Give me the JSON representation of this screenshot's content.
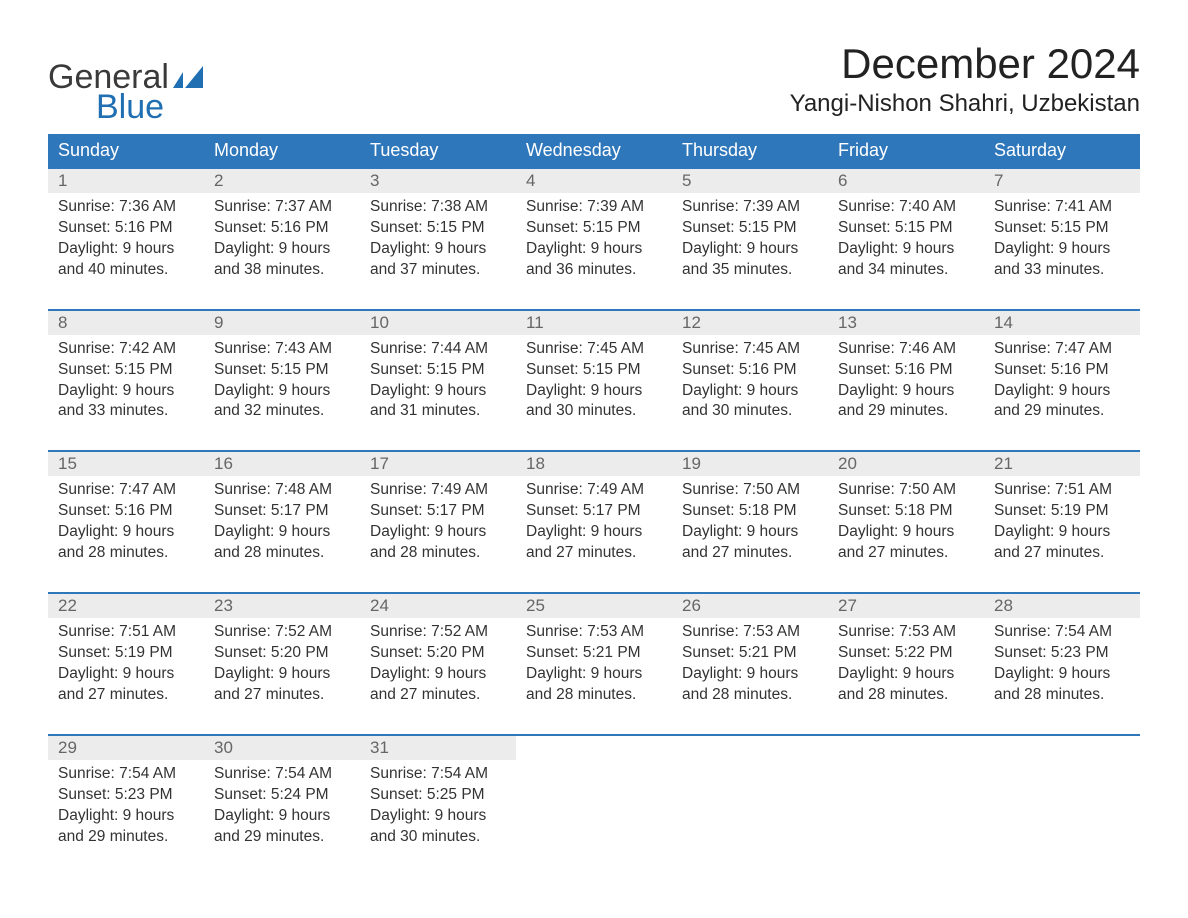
{
  "logo": {
    "word1": "General",
    "word2": "Blue",
    "brand_color": "#1f6fb2"
  },
  "header": {
    "month_title": "December 2024",
    "location": "Yangi-Nishon Shahri, Uzbekistan"
  },
  "calendar": {
    "type": "table",
    "header_bg": "#2f77bb",
    "header_fg": "#ffffff",
    "daynum_bg": "#ececec",
    "daynum_fg": "#666666",
    "row_divider_color": "#2f77bb",
    "background_color": "#ffffff",
    "text_color": "#333333",
    "day_headers": [
      "Sunday",
      "Monday",
      "Tuesday",
      "Wednesday",
      "Thursday",
      "Friday",
      "Saturday"
    ],
    "weeks": [
      [
        {
          "n": "1",
          "sunrise": "Sunrise: 7:36 AM",
          "sunset": "Sunset: 5:16 PM",
          "d1": "Daylight: 9 hours",
          "d2": "and 40 minutes."
        },
        {
          "n": "2",
          "sunrise": "Sunrise: 7:37 AM",
          "sunset": "Sunset: 5:16 PM",
          "d1": "Daylight: 9 hours",
          "d2": "and 38 minutes."
        },
        {
          "n": "3",
          "sunrise": "Sunrise: 7:38 AM",
          "sunset": "Sunset: 5:15 PM",
          "d1": "Daylight: 9 hours",
          "d2": "and 37 minutes."
        },
        {
          "n": "4",
          "sunrise": "Sunrise: 7:39 AM",
          "sunset": "Sunset: 5:15 PM",
          "d1": "Daylight: 9 hours",
          "d2": "and 36 minutes."
        },
        {
          "n": "5",
          "sunrise": "Sunrise: 7:39 AM",
          "sunset": "Sunset: 5:15 PM",
          "d1": "Daylight: 9 hours",
          "d2": "and 35 minutes."
        },
        {
          "n": "6",
          "sunrise": "Sunrise: 7:40 AM",
          "sunset": "Sunset: 5:15 PM",
          "d1": "Daylight: 9 hours",
          "d2": "and 34 minutes."
        },
        {
          "n": "7",
          "sunrise": "Sunrise: 7:41 AM",
          "sunset": "Sunset: 5:15 PM",
          "d1": "Daylight: 9 hours",
          "d2": "and 33 minutes."
        }
      ],
      [
        {
          "n": "8",
          "sunrise": "Sunrise: 7:42 AM",
          "sunset": "Sunset: 5:15 PM",
          "d1": "Daylight: 9 hours",
          "d2": "and 33 minutes."
        },
        {
          "n": "9",
          "sunrise": "Sunrise: 7:43 AM",
          "sunset": "Sunset: 5:15 PM",
          "d1": "Daylight: 9 hours",
          "d2": "and 32 minutes."
        },
        {
          "n": "10",
          "sunrise": "Sunrise: 7:44 AM",
          "sunset": "Sunset: 5:15 PM",
          "d1": "Daylight: 9 hours",
          "d2": "and 31 minutes."
        },
        {
          "n": "11",
          "sunrise": "Sunrise: 7:45 AM",
          "sunset": "Sunset: 5:15 PM",
          "d1": "Daylight: 9 hours",
          "d2": "and 30 minutes."
        },
        {
          "n": "12",
          "sunrise": "Sunrise: 7:45 AM",
          "sunset": "Sunset: 5:16 PM",
          "d1": "Daylight: 9 hours",
          "d2": "and 30 minutes."
        },
        {
          "n": "13",
          "sunrise": "Sunrise: 7:46 AM",
          "sunset": "Sunset: 5:16 PM",
          "d1": "Daylight: 9 hours",
          "d2": "and 29 minutes."
        },
        {
          "n": "14",
          "sunrise": "Sunrise: 7:47 AM",
          "sunset": "Sunset: 5:16 PM",
          "d1": "Daylight: 9 hours",
          "d2": "and 29 minutes."
        }
      ],
      [
        {
          "n": "15",
          "sunrise": "Sunrise: 7:47 AM",
          "sunset": "Sunset: 5:16 PM",
          "d1": "Daylight: 9 hours",
          "d2": "and 28 minutes."
        },
        {
          "n": "16",
          "sunrise": "Sunrise: 7:48 AM",
          "sunset": "Sunset: 5:17 PM",
          "d1": "Daylight: 9 hours",
          "d2": "and 28 minutes."
        },
        {
          "n": "17",
          "sunrise": "Sunrise: 7:49 AM",
          "sunset": "Sunset: 5:17 PM",
          "d1": "Daylight: 9 hours",
          "d2": "and 28 minutes."
        },
        {
          "n": "18",
          "sunrise": "Sunrise: 7:49 AM",
          "sunset": "Sunset: 5:17 PM",
          "d1": "Daylight: 9 hours",
          "d2": "and 27 minutes."
        },
        {
          "n": "19",
          "sunrise": "Sunrise: 7:50 AM",
          "sunset": "Sunset: 5:18 PM",
          "d1": "Daylight: 9 hours",
          "d2": "and 27 minutes."
        },
        {
          "n": "20",
          "sunrise": "Sunrise: 7:50 AM",
          "sunset": "Sunset: 5:18 PM",
          "d1": "Daylight: 9 hours",
          "d2": "and 27 minutes."
        },
        {
          "n": "21",
          "sunrise": "Sunrise: 7:51 AM",
          "sunset": "Sunset: 5:19 PM",
          "d1": "Daylight: 9 hours",
          "d2": "and 27 minutes."
        }
      ],
      [
        {
          "n": "22",
          "sunrise": "Sunrise: 7:51 AM",
          "sunset": "Sunset: 5:19 PM",
          "d1": "Daylight: 9 hours",
          "d2": "and 27 minutes."
        },
        {
          "n": "23",
          "sunrise": "Sunrise: 7:52 AM",
          "sunset": "Sunset: 5:20 PM",
          "d1": "Daylight: 9 hours",
          "d2": "and 27 minutes."
        },
        {
          "n": "24",
          "sunrise": "Sunrise: 7:52 AM",
          "sunset": "Sunset: 5:20 PM",
          "d1": "Daylight: 9 hours",
          "d2": "and 27 minutes."
        },
        {
          "n": "25",
          "sunrise": "Sunrise: 7:53 AM",
          "sunset": "Sunset: 5:21 PM",
          "d1": "Daylight: 9 hours",
          "d2": "and 28 minutes."
        },
        {
          "n": "26",
          "sunrise": "Sunrise: 7:53 AM",
          "sunset": "Sunset: 5:21 PM",
          "d1": "Daylight: 9 hours",
          "d2": "and 28 minutes."
        },
        {
          "n": "27",
          "sunrise": "Sunrise: 7:53 AM",
          "sunset": "Sunset: 5:22 PM",
          "d1": "Daylight: 9 hours",
          "d2": "and 28 minutes."
        },
        {
          "n": "28",
          "sunrise": "Sunrise: 7:54 AM",
          "sunset": "Sunset: 5:23 PM",
          "d1": "Daylight: 9 hours",
          "d2": "and 28 minutes."
        }
      ],
      [
        {
          "n": "29",
          "sunrise": "Sunrise: 7:54 AM",
          "sunset": "Sunset: 5:23 PM",
          "d1": "Daylight: 9 hours",
          "d2": "and 29 minutes."
        },
        {
          "n": "30",
          "sunrise": "Sunrise: 7:54 AM",
          "sunset": "Sunset: 5:24 PM",
          "d1": "Daylight: 9 hours",
          "d2": "and 29 minutes."
        },
        {
          "n": "31",
          "sunrise": "Sunrise: 7:54 AM",
          "sunset": "Sunset: 5:25 PM",
          "d1": "Daylight: 9 hours",
          "d2": "and 30 minutes."
        },
        null,
        null,
        null,
        null
      ]
    ]
  }
}
